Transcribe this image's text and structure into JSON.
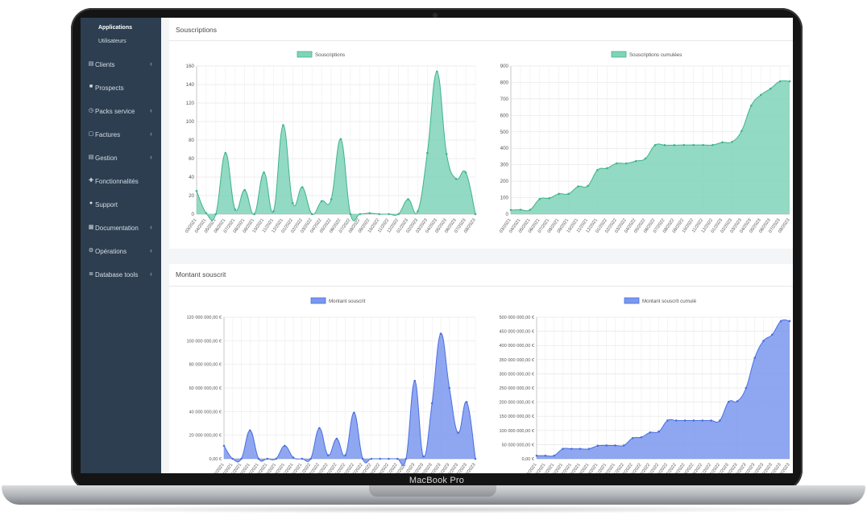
{
  "device": {
    "brand_label": "MacBook Pro"
  },
  "sidebar": {
    "subitems": [
      {
        "label": "Applications",
        "active": true
      },
      {
        "label": "Utilisateurs",
        "active": false
      }
    ],
    "items": [
      {
        "label": "Clients",
        "icon": "clipboard-icon",
        "has_children": true
      },
      {
        "label": "Prospects",
        "icon": "briefcase-icon",
        "has_children": false
      },
      {
        "label": "Packs service",
        "icon": "clock-icon",
        "has_children": true
      },
      {
        "label": "Factures",
        "icon": "invoice-icon",
        "has_children": true
      },
      {
        "label": "Gestion",
        "icon": "clipboard-icon",
        "has_children": true
      },
      {
        "label": "Fonctionnalités",
        "icon": "puzzle-icon",
        "has_children": false
      },
      {
        "label": "Support",
        "icon": "help-icon",
        "has_children": false
      },
      {
        "label": "Documentation",
        "icon": "book-icon",
        "has_children": true
      },
      {
        "label": "Opérations",
        "icon": "cogs-icon",
        "has_children": true
      },
      {
        "label": "Database tools",
        "icon": "database-icon",
        "has_children": true
      }
    ],
    "chevron": "‹"
  },
  "sections": {
    "subscriptions_title": "Souscriptions",
    "amount_title": "Montant souscrit"
  },
  "colors": {
    "sidebar_bg": "#2c3e50",
    "teal_fill": "#7fd4b8",
    "teal_line": "#3fb38d",
    "blue_fill": "#7b98ef",
    "blue_line": "#4a6fe0"
  },
  "chart_data": [
    {
      "type": "area",
      "legend": "Souscriptions",
      "ylim": [
        0,
        160
      ],
      "yticks": [
        "0",
        "20",
        "40",
        "60",
        "80",
        "100",
        "120",
        "140",
        "160"
      ],
      "x": [
        "03/2021",
        "04/2021",
        "05/2021",
        "06/2021",
        "07/2021",
        "08/2021",
        "09/2021",
        "10/2021",
        "11/2021",
        "12/2021",
        "01/2022",
        "02/2022",
        "03/2022",
        "04/2022",
        "05/2022",
        "06/2022",
        "07/2022",
        "08/2022",
        "09/2022",
        "10/2022",
        "11/2022",
        "12/2022",
        "01/2023",
        "02/2023",
        "03/2023",
        "04/2023",
        "05/2023",
        "06/2023",
        "07/2023",
        "08/2023"
      ],
      "values": [
        25,
        1,
        0,
        66,
        5,
        26,
        0,
        45,
        3,
        96,
        12,
        29,
        0,
        14,
        16,
        81,
        0,
        0,
        1,
        0,
        0,
        0,
        16,
        3,
        66,
        154,
        65,
        38,
        45,
        0
      ]
    },
    {
      "type": "area",
      "legend": "Souscriptions cumulées",
      "ylim": [
        0,
        900
      ],
      "yticks": [
        "0",
        "100",
        "200",
        "300",
        "400",
        "500",
        "600",
        "700",
        "800",
        "900"
      ],
      "x": [
        "03/2021",
        "04/2021",
        "05/2021",
        "06/2021",
        "07/2021",
        "08/2021",
        "09/2021",
        "10/2021",
        "11/2021",
        "12/2021",
        "01/2022",
        "02/2022",
        "03/2022",
        "04/2022",
        "05/2022",
        "06/2022",
        "07/2022",
        "08/2022",
        "09/2022",
        "10/2022",
        "11/2022",
        "12/2022",
        "01/2023",
        "02/2023",
        "03/2023",
        "04/2023",
        "05/2023",
        "06/2023",
        "07/2023",
        "08/2023"
      ],
      "values": [
        25,
        26,
        26,
        92,
        97,
        123,
        123,
        168,
        171,
        267,
        279,
        308,
        308,
        322,
        338,
        419,
        419,
        419,
        420,
        420,
        420,
        420,
        436,
        439,
        505,
        659,
        724,
        762,
        807,
        807
      ]
    },
    {
      "type": "area",
      "legend": "Montant souscrit",
      "ylim": [
        0,
        120000000
      ],
      "yticks": [
        "0,00 €",
        "20 000 000,00 €",
        "40 000 000,00 €",
        "60 000 000,00 €",
        "80 000 000,00 €",
        "100 000 000,00 €",
        "120 000 000,00 €"
      ],
      "x": [
        "03/2021",
        "04/2021",
        "05/2021",
        "06/2021",
        "07/2021",
        "08/2021",
        "09/2021",
        "10/2021",
        "11/2021",
        "12/2021",
        "01/2022",
        "02/2022",
        "03/2022",
        "04/2022",
        "05/2022",
        "06/2022",
        "07/2022",
        "08/2022",
        "09/2022",
        "10/2022",
        "11/2022",
        "12/2022",
        "01/2023",
        "02/2023",
        "03/2023",
        "04/2023",
        "05/2023",
        "06/2023",
        "07/2023",
        "08/2023"
      ],
      "values": [
        11000000,
        0,
        0,
        24000000,
        0,
        0,
        0,
        11000000,
        1000000,
        0,
        0,
        26000000,
        3000000,
        17000000,
        3000000,
        39000000,
        0,
        0,
        0,
        0,
        0,
        0,
        66000000,
        2000000,
        47000000,
        106000000,
        60000000,
        22000000,
        48000000,
        0
      ]
    },
    {
      "type": "area",
      "legend": "Montant souscrit cumulé",
      "ylim": [
        0,
        500000000
      ],
      "yticks": [
        "0,00 €",
        "50 000 000,00 €",
        "100 000 000,00 €",
        "150 000 000,00 €",
        "200 000 000,00 €",
        "250 000 000,00 €",
        "300 000 000,00 €",
        "350 000 000,00 €",
        "400 000 000,00 €",
        "450 000 000,00 €",
        "500 000 000,00 €"
      ],
      "x": [
        "03/2021",
        "04/2021",
        "05/2021",
        "06/2021",
        "07/2021",
        "08/2021",
        "09/2021",
        "10/2021",
        "11/2021",
        "12/2021",
        "01/2022",
        "02/2022",
        "03/2022",
        "04/2022",
        "05/2022",
        "06/2022",
        "07/2022",
        "08/2022",
        "09/2022",
        "10/2022",
        "11/2022",
        "12/2022",
        "01/2023",
        "02/2023",
        "03/2023",
        "04/2023",
        "05/2023",
        "06/2023",
        "07/2023",
        "08/2023"
      ],
      "values": [
        11000000,
        11000000,
        11000000,
        35000000,
        35000000,
        35000000,
        35000000,
        46000000,
        47000000,
        47000000,
        47000000,
        73000000,
        76000000,
        93000000,
        96000000,
        135000000,
        135000000,
        135000000,
        135000000,
        135000000,
        135000000,
        135000000,
        201000000,
        203000000,
        250000000,
        356000000,
        416000000,
        438000000,
        486000000,
        486000000
      ]
    }
  ]
}
